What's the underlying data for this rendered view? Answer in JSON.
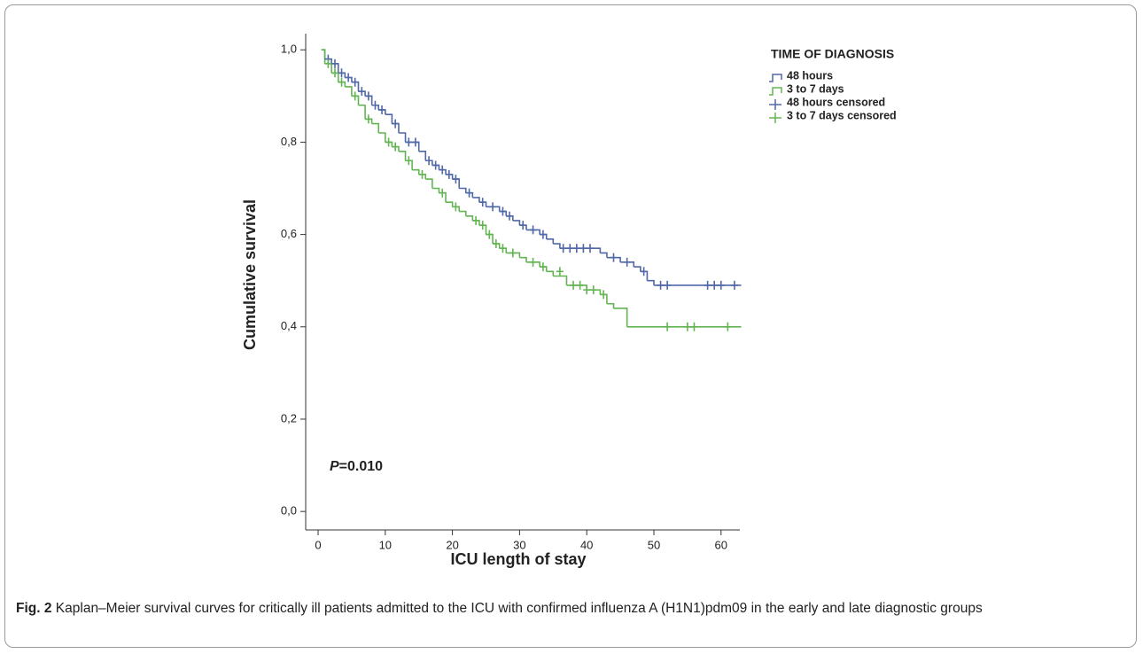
{
  "chart_data": {
    "type": "step",
    "y_label": "Cumulative survival",
    "x_label": "ICU length of stay",
    "legend_title": "TIME OF DIAGNOSIS",
    "annotation": "P=0.010",
    "xlim": [
      -1.85,
      62.8
    ],
    "xticks": [
      0,
      10,
      20,
      30,
      40,
      50,
      60
    ],
    "ylim": [
      -0.04,
      1.035
    ],
    "yticks": [
      {
        "value": 0,
        "label": "0,0"
      },
      {
        "value": 0.2,
        "label": "0,2"
      },
      {
        "value": 0.4,
        "label": "0,4"
      },
      {
        "value": 0.6,
        "label": "0,6"
      },
      {
        "value": 0.8,
        "label": "0,8"
      },
      {
        "value": 1,
        "label": "1,0"
      }
    ],
    "series": [
      {
        "name": "48 hours",
        "color": "#5068a8",
        "x": [
          0.5,
          1,
          2,
          3,
          4,
          5,
          6,
          7,
          8,
          9,
          10,
          11,
          12,
          13,
          15,
          16,
          17,
          18,
          19,
          20,
          21,
          22,
          23,
          24,
          25,
          27,
          28,
          29,
          30,
          31,
          33,
          34,
          35,
          36,
          42,
          43,
          45,
          47,
          48,
          49,
          50,
          63
        ],
        "values": [
          1.0,
          0.98,
          0.97,
          0.95,
          0.94,
          0.93,
          0.91,
          0.9,
          0.88,
          0.87,
          0.86,
          0.84,
          0.82,
          0.8,
          0.78,
          0.76,
          0.75,
          0.74,
          0.73,
          0.72,
          0.7,
          0.69,
          0.68,
          0.67,
          0.66,
          0.65,
          0.64,
          0.63,
          0.62,
          0.61,
          0.6,
          0.59,
          0.58,
          0.57,
          0.56,
          0.55,
          0.54,
          0.53,
          0.52,
          0.5,
          0.49,
          0.49
        ]
      },
      {
        "name": "3 to 7 days",
        "color": "#62b552",
        "x": [
          0.5,
          1,
          2,
          3,
          4,
          5,
          6,
          7,
          8,
          9,
          10,
          11,
          12,
          13,
          14,
          15,
          16,
          17,
          18,
          19,
          20,
          21,
          22,
          23,
          24,
          25,
          26,
          27,
          28,
          30,
          31,
          33,
          34,
          35,
          37,
          40,
          42,
          43,
          44,
          46,
          63
        ],
        "values": [
          1.0,
          0.97,
          0.95,
          0.93,
          0.92,
          0.9,
          0.88,
          0.85,
          0.84,
          0.82,
          0.8,
          0.79,
          0.78,
          0.76,
          0.74,
          0.73,
          0.72,
          0.7,
          0.69,
          0.67,
          0.66,
          0.65,
          0.64,
          0.63,
          0.62,
          0.6,
          0.58,
          0.57,
          0.56,
          0.55,
          0.54,
          0.53,
          0.52,
          0.51,
          0.49,
          0.48,
          0.47,
          0.45,
          0.44,
          0.4,
          0.4
        ]
      },
      {
        "name": "48 hours censored",
        "color": "#5068a8",
        "marker": "+",
        "x": [
          1.5,
          2.5,
          3.5,
          4.5,
          5.5,
          6.5,
          7.5,
          8.5,
          9.5,
          11.5,
          13.5,
          14.5,
          16.5,
          17.5,
          18.5,
          19.5,
          20.5,
          22.5,
          24.5,
          26,
          27.5,
          28.5,
          30.5,
          32,
          33.5,
          36.5,
          37.5,
          38.5,
          39.5,
          40.5,
          44,
          46,
          48.5,
          51,
          52,
          58,
          59,
          60,
          62
        ],
        "values": [
          0.98,
          0.97,
          0.95,
          0.94,
          0.93,
          0.91,
          0.9,
          0.88,
          0.87,
          0.84,
          0.8,
          0.8,
          0.76,
          0.75,
          0.74,
          0.73,
          0.72,
          0.69,
          0.67,
          0.66,
          0.65,
          0.64,
          0.62,
          0.61,
          0.6,
          0.57,
          0.57,
          0.57,
          0.57,
          0.57,
          0.55,
          0.54,
          0.52,
          0.49,
          0.49,
          0.49,
          0.49,
          0.49,
          0.49
        ]
      },
      {
        "name": "3 to 7 days censored",
        "color": "#62b552",
        "marker": "+",
        "x": [
          1.5,
          2.5,
          3.5,
          5.5,
          7.5,
          10.5,
          11.5,
          13.5,
          15.5,
          18.5,
          20.5,
          23.5,
          24.5,
          25.5,
          26.5,
          27.5,
          29,
          32,
          33.5,
          36,
          38,
          39,
          40,
          41,
          42.5,
          52,
          55,
          56,
          61
        ],
        "values": [
          0.97,
          0.95,
          0.93,
          0.9,
          0.85,
          0.8,
          0.79,
          0.76,
          0.73,
          0.69,
          0.66,
          0.63,
          0.62,
          0.6,
          0.58,
          0.57,
          0.56,
          0.54,
          0.53,
          0.52,
          0.49,
          0.49,
          0.48,
          0.48,
          0.47,
          0.4,
          0.4,
          0.4,
          0.4
        ]
      }
    ]
  },
  "caption": {
    "label": "Fig. 2",
    "text": "Kaplan–Meier survival curves for critically ill patients admitted to the ICU with confirmed influenza A (H1N1)pdm09 in the early and late diagnostic groups"
  }
}
